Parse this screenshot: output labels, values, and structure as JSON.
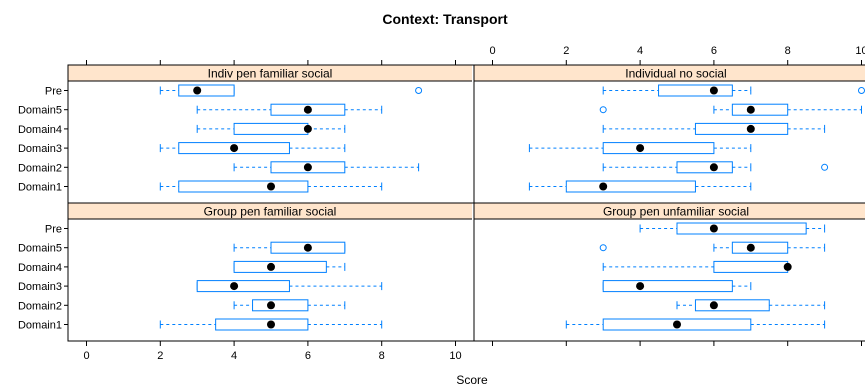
{
  "chart_data": {
    "type": "boxplot",
    "title": "Context: Transport",
    "xlabel": "Score",
    "xlim": [
      0,
      10
    ],
    "x_ticks": [
      0,
      2,
      4,
      6,
      8,
      10
    ],
    "categories": [
      "Domain1",
      "Domain2",
      "Domain3",
      "Domain4",
      "Domain5",
      "Pre"
    ],
    "colors": {
      "strip": "#FFE5CC",
      "box": "#0080FF",
      "median": "#000000",
      "frame": "#000000"
    },
    "panels": [
      {
        "name": "Indiv pen familiar social",
        "boxes": [
          {
            "category": "Domain1",
            "whisker_low": 2,
            "q1": 2.5,
            "median": 5,
            "q3": 6,
            "whisker_high": 8,
            "outliers": []
          },
          {
            "category": "Domain2",
            "whisker_low": 4,
            "q1": 5,
            "median": 6,
            "q3": 7,
            "whisker_high": 9,
            "outliers": []
          },
          {
            "category": "Domain3",
            "whisker_low": 2,
            "q1": 2.5,
            "median": 4,
            "q3": 5.5,
            "whisker_high": 7,
            "outliers": []
          },
          {
            "category": "Domain4",
            "whisker_low": 3,
            "q1": 4,
            "median": 6,
            "q3": 6,
            "whisker_high": 7,
            "outliers": []
          },
          {
            "category": "Domain5",
            "whisker_low": 3,
            "q1": 5,
            "median": 6,
            "q3": 7,
            "whisker_high": 8,
            "outliers": []
          },
          {
            "category": "Pre",
            "whisker_low": 2,
            "q1": 2.5,
            "median": 3,
            "q3": 4,
            "whisker_high": 4,
            "outliers": [
              9
            ]
          }
        ]
      },
      {
        "name": "Individual no social",
        "boxes": [
          {
            "category": "Domain1",
            "whisker_low": 1,
            "q1": 2,
            "median": 3,
            "q3": 5.5,
            "whisker_high": 7,
            "outliers": []
          },
          {
            "category": "Domain2",
            "whisker_low": 3,
            "q1": 5,
            "median": 6,
            "q3": 6.5,
            "whisker_high": 7,
            "outliers": [
              9
            ]
          },
          {
            "category": "Domain3",
            "whisker_low": 1,
            "q1": 3,
            "median": 4,
            "q3": 6,
            "whisker_high": 7,
            "outliers": []
          },
          {
            "category": "Domain4",
            "whisker_low": 3,
            "q1": 5.5,
            "median": 7,
            "q3": 8,
            "whisker_high": 9,
            "outliers": []
          },
          {
            "category": "Domain5",
            "whisker_low": 6,
            "q1": 6.5,
            "median": 7,
            "q3": 8,
            "whisker_high": 10,
            "outliers": [
              3
            ]
          },
          {
            "category": "Pre",
            "whisker_low": 3,
            "q1": 4.5,
            "median": 6,
            "q3": 6.5,
            "whisker_high": 7,
            "outliers": [
              10
            ]
          }
        ]
      },
      {
        "name": "Group pen familiar social",
        "boxes": [
          {
            "category": "Domain1",
            "whisker_low": 2,
            "q1": 3.5,
            "median": 5,
            "q3": 6,
            "whisker_high": 8,
            "outliers": []
          },
          {
            "category": "Domain2",
            "whisker_low": 4,
            "q1": 4.5,
            "median": 5,
            "q3": 6,
            "whisker_high": 7,
            "outliers": []
          },
          {
            "category": "Domain3",
            "whisker_low": 3,
            "q1": 3,
            "median": 4,
            "q3": 5.5,
            "whisker_high": 8,
            "outliers": []
          },
          {
            "category": "Domain4",
            "whisker_low": 4,
            "q1": 4,
            "median": 5,
            "q3": 6.5,
            "whisker_high": 7,
            "outliers": []
          },
          {
            "category": "Domain5",
            "whisker_low": 4,
            "q1": 5,
            "median": 6,
            "q3": 7,
            "whisker_high": 7,
            "outliers": []
          },
          {
            "category": "Pre",
            "whisker_low": null,
            "q1": null,
            "median": null,
            "q3": null,
            "whisker_high": null,
            "outliers": []
          }
        ]
      },
      {
        "name": "Group pen unfamiliar social",
        "boxes": [
          {
            "category": "Domain1",
            "whisker_low": 2,
            "q1": 3,
            "median": 5,
            "q3": 7,
            "whisker_high": 9,
            "outliers": []
          },
          {
            "category": "Domain2",
            "whisker_low": 5,
            "q1": 5.5,
            "median": 6,
            "q3": 7.5,
            "whisker_high": 9,
            "outliers": []
          },
          {
            "category": "Domain3",
            "whisker_low": 3,
            "q1": 3,
            "median": 4,
            "q3": 6.5,
            "whisker_high": 7,
            "outliers": []
          },
          {
            "category": "Domain4",
            "whisker_low": 3,
            "q1": 6,
            "median": 8,
            "q3": 8,
            "whisker_high": 8,
            "outliers": []
          },
          {
            "category": "Domain5",
            "whisker_low": 6,
            "q1": 6.5,
            "median": 7,
            "q3": 8,
            "whisker_high": 9,
            "outliers": [
              3
            ]
          },
          {
            "category": "Pre",
            "whisker_low": 4,
            "q1": 5,
            "median": 6,
            "q3": 8.5,
            "whisker_high": 9,
            "outliers": []
          }
        ]
      }
    ]
  }
}
